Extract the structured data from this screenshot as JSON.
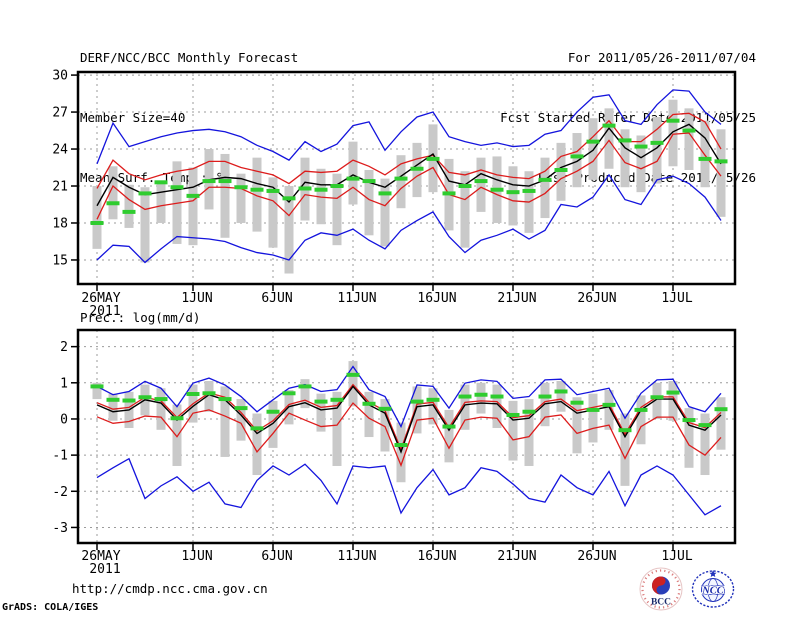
{
  "header": {
    "title": "DERF/NCC/BCC Monthly Forecast",
    "member_size": "Member Size=40",
    "for_range": "For 2011/05/26-2011/07/04",
    "refer_date": "Fcst Started Refer Date 2011/05/25",
    "produced_date": "Fcst Produced Date 2011/05/26"
  },
  "footer": {
    "url": "http://cmdp.ncc.cma.gov.cn",
    "credit": "GrADS: COLA/IGES",
    "bcc_label": "BCC",
    "ncc_label": "NCC"
  },
  "year_label": "2011",
  "colors": {
    "blue": "#1414dd",
    "red": "#dd1c1c",
    "black": "#000000",
    "green": "#2fcc2f",
    "bar": "#c9c9c9",
    "grid": "#9b9b9b",
    "frame": "#000000",
    "logo_blue": "#2233bb",
    "logo_red": "#cc2222",
    "logo_navy": "#1b2a6b"
  },
  "chart_data": [
    {
      "name": "temperature-chart",
      "type": "line",
      "title": "Mean Surf. Temp.: °C",
      "x_tick_labels": [
        "26MAY",
        "1JUN",
        "6JUN",
        "11JUN",
        "16JUN",
        "21JUN",
        "26JUN",
        "1JUL"
      ],
      "x_tick_days": [
        0,
        6,
        11,
        16,
        21,
        26,
        31,
        36
      ],
      "yticks": [
        30,
        27,
        24,
        21,
        18,
        15
      ],
      "ylim": [
        13.05,
        30.25
      ],
      "grid": true,
      "legend": "none",
      "series": [
        {
          "name": "ensemble-max",
          "color": "blue",
          "values": [
            22.8,
            26.1,
            24.2,
            24.6,
            25.0,
            25.3,
            25.5,
            25.6,
            25.4,
            25.0,
            24.3,
            23.8,
            23.1,
            24.6,
            23.8,
            24.4,
            25.9,
            26.2,
            23.9,
            25.4,
            26.6,
            27.0,
            25.0,
            24.6,
            24.3,
            24.5,
            24.2,
            24.3,
            25.2,
            25.5,
            27.0,
            28.2,
            28.4,
            26.3,
            26.0,
            27.6,
            28.8,
            28.7,
            27.0,
            26.0
          ]
        },
        {
          "name": "upper-spread",
          "color": "red",
          "values": [
            20.8,
            23.1,
            22.0,
            21.5,
            21.9,
            22.2,
            22.4,
            23.0,
            23.0,
            22.5,
            22.2,
            21.9,
            21.2,
            22.2,
            22.1,
            22.2,
            23.1,
            22.6,
            21.9,
            22.8,
            23.2,
            23.5,
            22.1,
            21.9,
            22.3,
            21.9,
            21.7,
            21.6,
            22.2,
            23.4,
            23.8,
            25.0,
            26.3,
            24.6,
            24.6,
            25.6,
            26.8,
            26.9,
            26.2,
            24.0
          ]
        },
        {
          "name": "ensemble-mean",
          "color": "black",
          "values": [
            19.4,
            21.7,
            20.9,
            20.3,
            20.5,
            20.7,
            20.9,
            21.5,
            21.7,
            21.6,
            21.2,
            20.9,
            19.7,
            21.3,
            21.1,
            21.1,
            21.9,
            21.3,
            20.9,
            21.8,
            22.7,
            23.6,
            21.4,
            21.1,
            22.0,
            21.5,
            21.1,
            21.0,
            21.5,
            22.5,
            23.0,
            23.9,
            25.7,
            24.1,
            23.3,
            24.1,
            25.4,
            26.0,
            24.9,
            22.8
          ]
        },
        {
          "name": "obs-dashes",
          "color": "green",
          "style": "dashes",
          "values": [
            18.0,
            19.6,
            18.9,
            20.4,
            21.3,
            20.9,
            20.2,
            21.4,
            21.4,
            20.9,
            20.7,
            20.6,
            20.0,
            20.8,
            20.7,
            21.0,
            21.6,
            21.4,
            20.4,
            21.6,
            22.4,
            23.2,
            20.4,
            21.0,
            21.4,
            20.7,
            20.5,
            20.6,
            21.5,
            22.3,
            23.4,
            24.6,
            25.9,
            24.7,
            24.2,
            24.5,
            26.3,
            25.5,
            23.2,
            23.0
          ]
        },
        {
          "name": "lower-spread",
          "color": "red",
          "values": [
            18.3,
            21.0,
            19.9,
            19.1,
            19.4,
            19.6,
            19.8,
            20.9,
            20.9,
            20.8,
            20.2,
            19.8,
            18.6,
            20.3,
            20.1,
            20.0,
            20.9,
            19.9,
            19.4,
            20.8,
            21.8,
            22.5,
            20.3,
            19.9,
            20.9,
            20.3,
            19.8,
            19.7,
            20.4,
            21.6,
            22.2,
            23.0,
            24.7,
            22.9,
            22.4,
            23.0,
            25.2,
            25.3,
            23.5,
            21.8
          ]
        },
        {
          "name": "ensemble-min",
          "color": "blue",
          "values": [
            15.0,
            16.2,
            16.1,
            14.8,
            15.9,
            16.9,
            16.8,
            16.7,
            16.5,
            16.0,
            15.6,
            15.4,
            15.0,
            16.6,
            17.2,
            17.0,
            17.5,
            16.6,
            15.9,
            17.4,
            18.2,
            18.9,
            16.9,
            15.6,
            16.6,
            17.0,
            17.5,
            16.7,
            17.4,
            19.5,
            19.3,
            20.1,
            21.9,
            19.9,
            19.5,
            21.5,
            21.8,
            21.2,
            20.1,
            18.2
          ]
        }
      ],
      "bars": [
        [
          15.9,
          21.0
        ],
        [
          18.3,
          22.6
        ],
        [
          17.6,
          21.1
        ],
        [
          14.8,
          20.9
        ],
        [
          18.0,
          21.3
        ],
        [
          16.3,
          23.0
        ],
        [
          16.2,
          22.5
        ],
        [
          19.1,
          24.0
        ],
        [
          16.8,
          23.6
        ],
        [
          18.0,
          22.0
        ],
        [
          17.3,
          23.3
        ],
        [
          16.0,
          21.7
        ],
        [
          13.9,
          21.0
        ],
        [
          18.2,
          23.3
        ],
        [
          17.9,
          22.4
        ],
        [
          16.2,
          22.0
        ],
        [
          19.5,
          24.6
        ],
        [
          17.0,
          22.3
        ],
        [
          16.1,
          21.6
        ],
        [
          19.2,
          23.5
        ],
        [
          20.1,
          24.5
        ],
        [
          20.5,
          26.0
        ],
        [
          17.4,
          23.2
        ],
        [
          16.0,
          22.2
        ],
        [
          18.9,
          23.3
        ],
        [
          18.0,
          23.4
        ],
        [
          17.8,
          22.6
        ],
        [
          17.2,
          22.2
        ],
        [
          18.4,
          23.3
        ],
        [
          19.8,
          24.5
        ],
        [
          20.9,
          25.3
        ],
        [
          21.5,
          26.5
        ],
        [
          22.4,
          27.3
        ],
        [
          20.9,
          25.6
        ],
        [
          20.5,
          25.1
        ],
        [
          21.2,
          26.6
        ],
        [
          22.6,
          28.0
        ],
        [
          22.3,
          27.3
        ],
        [
          20.9,
          26.3
        ],
        [
          18.5,
          25.6
        ]
      ]
    },
    {
      "name": "precipitation-chart",
      "type": "line",
      "title": "Prec.: log(mm/d)",
      "x_tick_labels": [
        "26MAY",
        "1JUN",
        "6JUN",
        "11JUN",
        "16JUN",
        "21JUN",
        "26JUN",
        "1JUL"
      ],
      "x_tick_days": [
        0,
        6,
        11,
        16,
        21,
        26,
        31,
        36
      ],
      "yticks": [
        2,
        1,
        0,
        -1,
        -2,
        -3
      ],
      "ylim": [
        -3.43,
        2.46
      ],
      "grid": true,
      "legend": "none",
      "series": [
        {
          "name": "ensemble-max",
          "color": "blue",
          "values": [
            0.9,
            0.67,
            0.76,
            1.04,
            0.85,
            0.34,
            0.99,
            1.13,
            0.94,
            0.62,
            0.2,
            0.53,
            0.85,
            0.95,
            0.76,
            0.81,
            1.45,
            0.81,
            0.62,
            -0.21,
            0.94,
            0.9,
            0.3,
            0.99,
            1.08,
            1.04,
            0.57,
            0.62,
            1.08,
            1.1,
            0.67,
            0.76,
            0.85,
            0.02,
            0.71,
            1.08,
            1.1,
            0.34,
            0.2,
            0.71
          ]
        },
        {
          "name": "upper-spread",
          "color": "red",
          "values": [
            0.45,
            0.27,
            0.32,
            0.6,
            0.5,
            0.04,
            0.42,
            0.72,
            0.6,
            0.18,
            -0.33,
            -0.05,
            0.4,
            0.52,
            0.32,
            0.37,
            0.95,
            0.46,
            0.23,
            -0.84,
            0.41,
            0.46,
            -0.24,
            0.46,
            0.5,
            0.48,
            0.04,
            0.09,
            0.48,
            0.55,
            0.23,
            0.32,
            0.41,
            -0.42,
            0.32,
            0.61,
            0.61,
            -0.1,
            -0.24,
            0.18
          ]
        },
        {
          "name": "ensemble-mean",
          "color": "black",
          "values": [
            0.39,
            0.2,
            0.25,
            0.53,
            0.44,
            -0.03,
            0.35,
            0.67,
            0.53,
            0.11,
            -0.4,
            -0.12,
            0.34,
            0.45,
            0.25,
            0.3,
            0.9,
            0.39,
            0.16,
            -0.91,
            0.34,
            0.39,
            -0.31,
            0.39,
            0.44,
            0.42,
            -0.03,
            0.02,
            0.42,
            0.48,
            0.16,
            0.25,
            0.34,
            -0.49,
            0.25,
            0.55,
            0.55,
            -0.17,
            -0.31,
            0.11
          ]
        },
        {
          "name": "obs-dashes",
          "color": "green",
          "style": "dashes",
          "values": [
            0.9,
            0.53,
            0.51,
            0.6,
            0.55,
            0.02,
            0.69,
            0.71,
            0.55,
            0.3,
            -0.26,
            0.2,
            0.71,
            0.9,
            0.48,
            0.53,
            1.22,
            0.42,
            0.28,
            -0.72,
            0.48,
            0.53,
            -0.21,
            0.62,
            0.67,
            0.62,
            0.11,
            0.2,
            0.62,
            0.76,
            0.45,
            0.25,
            0.39,
            -0.31,
            0.25,
            0.6,
            0.73,
            -0.03,
            -0.17,
            0.27
          ]
        },
        {
          "name": "lower-spread",
          "color": "red",
          "values": [
            0.06,
            -0.12,
            -0.07,
            0.08,
            0.05,
            -0.49,
            0.16,
            0.25,
            0.08,
            -0.12,
            -0.91,
            -0.4,
            0.16,
            -0.03,
            -0.21,
            -0.17,
            0.44,
            0.02,
            -0.21,
            -1.28,
            -0.03,
            0.02,
            -0.81,
            -0.03,
            0.05,
            0.02,
            -0.58,
            -0.49,
            0.05,
            0.11,
            -0.4,
            -0.26,
            -0.17,
            -1.09,
            -0.21,
            0.05,
            0.05,
            -0.72,
            -1.0,
            -0.51
          ]
        },
        {
          "name": "ensemble-min",
          "color": "blue",
          "values": [
            -1.62,
            -1.35,
            -1.1,
            -2.2,
            -1.85,
            -1.6,
            -2.0,
            -1.75,
            -2.35,
            -2.45,
            -1.7,
            -1.3,
            -1.55,
            -1.25,
            -1.7,
            -2.35,
            -1.3,
            -1.35,
            -1.3,
            -2.6,
            -1.9,
            -1.4,
            -2.1,
            -1.9,
            -1.35,
            -1.45,
            -1.8,
            -2.2,
            -2.3,
            -1.55,
            -1.9,
            -2.1,
            -1.45,
            -2.4,
            -1.55,
            -1.3,
            -1.55,
            -2.1,
            -2.65,
            -2.4
          ]
        }
      ],
      "bars": [
        [
          0.55,
          1.0
        ],
        [
          -0.05,
          0.7
        ],
        [
          -0.25,
          0.75
        ],
        [
          0.1,
          0.95
        ],
        [
          -0.3,
          0.85
        ],
        [
          -1.3,
          0.4
        ],
        [
          -0.1,
          0.95
        ],
        [
          0.2,
          1.05
        ],
        [
          -1.05,
          0.9
        ],
        [
          -0.6,
          0.55
        ],
        [
          -1.55,
          0.15
        ],
        [
          -0.8,
          0.5
        ],
        [
          -0.15,
          0.8
        ],
        [
          0.3,
          1.1
        ],
        [
          -0.35,
          0.7
        ],
        [
          -1.3,
          0.75
        ],
        [
          0.35,
          1.6
        ],
        [
          -0.5,
          0.75
        ],
        [
          -0.9,
          0.55
        ],
        [
          -1.75,
          -0.1
        ],
        [
          -0.4,
          0.9
        ],
        [
          -0.15,
          0.85
        ],
        [
          -1.2,
          0.25
        ],
        [
          -0.3,
          0.95
        ],
        [
          0.15,
          1.0
        ],
        [
          -0.25,
          0.95
        ],
        [
          -1.15,
          0.5
        ],
        [
          -1.3,
          0.55
        ],
        [
          -0.2,
          1.0
        ],
        [
          0.2,
          1.05
        ],
        [
          -0.95,
          0.6
        ],
        [
          -0.65,
          0.7
        ],
        [
          -0.3,
          0.8
        ],
        [
          -1.85,
          0.15
        ],
        [
          -0.7,
          0.65
        ],
        [
          0.0,
          1.0
        ],
        [
          -0.05,
          1.05
        ],
        [
          -1.35,
          0.3
        ],
        [
          -1.55,
          0.15
        ],
        [
          -0.85,
          0.6
        ]
      ]
    }
  ]
}
